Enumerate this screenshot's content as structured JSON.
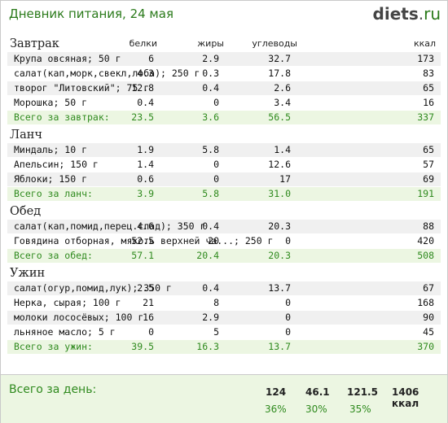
{
  "header": {
    "title": "Дневник питания, 24 мая",
    "logo_main": "diets",
    "logo_dot": ".",
    "logo_tld": "ru"
  },
  "columns": {
    "protein": "белки",
    "fat": "жиры",
    "carbs": "углеводы",
    "kcal": "ккал"
  },
  "meals": [
    {
      "title": "Завтрак",
      "items": [
        {
          "name": "Крупа овсяная; 50 г",
          "protein": "6",
          "fat": "2.9",
          "carbs": "32.7",
          "kcal": "173"
        },
        {
          "name": "салат(кап,морк,свекл,лоба); 250 г",
          "protein": "4.3",
          "fat": "0.3",
          "carbs": "17.8",
          "kcal": "83"
        },
        {
          "name": "творог \"Литовский\"; 75 г",
          "protein": "12.8",
          "fat": "0.4",
          "carbs": "2.6",
          "kcal": "65"
        },
        {
          "name": "Морошка; 50 г",
          "protein": "0.4",
          "fat": "0",
          "carbs": "3.4",
          "kcal": "16"
        }
      ],
      "total": {
        "name": "Всего за завтрак:",
        "protein": "23.5",
        "fat": "3.6",
        "carbs": "56.5",
        "kcal": "337"
      }
    },
    {
      "title": "Ланч",
      "items": [
        {
          "name": "Миндаль; 10 г",
          "protein": "1.9",
          "fat": "5.8",
          "carbs": "1.4",
          "kcal": "65"
        },
        {
          "name": "Апельсин; 150 г",
          "protein": "1.4",
          "fat": "0",
          "carbs": "12.6",
          "kcal": "57"
        },
        {
          "name": "Яблоки; 150 г",
          "protein": "0.6",
          "fat": "0",
          "carbs": "17",
          "kcal": "69"
        }
      ],
      "total": {
        "name": "Всего за ланч:",
        "protein": "3.9",
        "fat": "5.8",
        "carbs": "31.0",
        "kcal": "191"
      }
    },
    {
      "title": "Обед",
      "items": [
        {
          "name": "салат(кап,помид,перец.слад); 350 г",
          "protein": "4.6",
          "fat": "0.4",
          "carbs": "20.3",
          "kcal": "88"
        },
        {
          "name": "Говядина отборная, мякоть верхней ча...; 250 г",
          "protein": "52.5",
          "fat": "20",
          "carbs": "0",
          "kcal": "420"
        }
      ],
      "total": {
        "name": "Всего за обед:",
        "protein": "57.1",
        "fat": "20.4",
        "carbs": "20.3",
        "kcal": "508"
      }
    },
    {
      "title": "Ужин",
      "items": [
        {
          "name": "салат(огур,помид,лук); 350 г",
          "protein": "2.5",
          "fat": "0.4",
          "carbs": "13.7",
          "kcal": "67"
        },
        {
          "name": "Нерка, сырая; 100 г",
          "protein": "21",
          "fat": "8",
          "carbs": "0",
          "kcal": "168"
        },
        {
          "name": "молоки лососёвых; 100 г",
          "protein": "16",
          "fat": "2.9",
          "carbs": "0",
          "kcal": "90"
        },
        {
          "name": "льняное масло; 5 г",
          "protein": "0",
          "fat": "5",
          "carbs": "0",
          "kcal": "45"
        }
      ],
      "total": {
        "name": "Всего за ужин:",
        "protein": "39.5",
        "fat": "16.3",
        "carbs": "13.7",
        "kcal": "370"
      }
    }
  ],
  "day_total": {
    "label": "Всего за день:",
    "protein": "124",
    "fat": "46.1",
    "carbs": "121.5",
    "kcal": "1406 ккал",
    "protein_pct": "36%",
    "fat_pct": "30%",
    "carbs_pct": "35%"
  }
}
